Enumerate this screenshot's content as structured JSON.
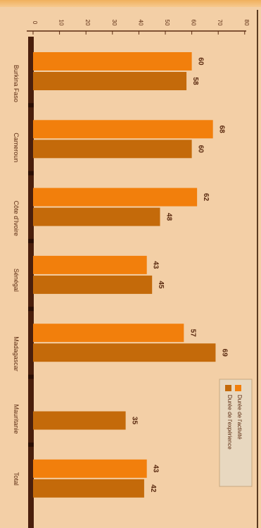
{
  "chart_data": {
    "type": "bar",
    "orientation": "horizontal",
    "rotated_page": true,
    "categories": [
      "Burkina Faso",
      "Cameroun",
      "Côte d'Ivoire",
      "Sénégal",
      "Madagascar",
      "Mauritanie",
      "Total"
    ],
    "series": [
      {
        "name": "Durée de l'activité",
        "color": "#f27f0c",
        "values": [
          60,
          68,
          62,
          43,
          57,
          null,
          43
        ]
      },
      {
        "name": "Durée de l'expérience",
        "color": "#c46a0a",
        "values": [
          58,
          60,
          48,
          45,
          69,
          35,
          42
        ]
      }
    ],
    "value_labels": [
      [
        "60",
        "58"
      ],
      [
        "68",
        "60"
      ],
      [
        "62",
        "48"
      ],
      [
        "43",
        "45"
      ],
      [
        "57",
        "69"
      ],
      [
        "",
        "35"
      ],
      [
        "43",
        "42"
      ]
    ],
    "xlim": [
      0,
      80
    ],
    "ticks": [
      "0",
      "10",
      "20",
      "30",
      "40",
      "50",
      "60",
      "70",
      "80"
    ],
    "legend": "bottom-right",
    "grid": false,
    "colors": {
      "background": "#f3cfa6",
      "axis_bar": "#4a1f0c",
      "divider": "#3a1a0a",
      "text": "#5a2a10"
    }
  }
}
